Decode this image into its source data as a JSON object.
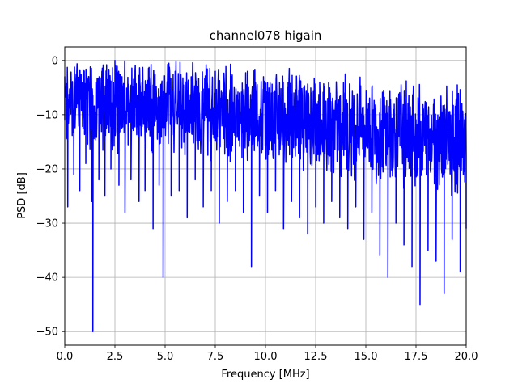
{
  "chart_data": {
    "type": "line",
    "title": "channel078 higain",
    "xlabel": "Frequency [MHz]",
    "ylabel": "PSD [dB]",
    "xlim": [
      0,
      20
    ],
    "ylim": [
      -52.5,
      2.5
    ],
    "x_ticks": [
      0,
      2.5,
      5,
      7.5,
      10,
      12.5,
      15,
      17.5,
      20
    ],
    "x_tick_labels": [
      "0.0",
      "2.5",
      "5.0",
      "7.5",
      "10.0",
      "12.5",
      "15.0",
      "17.5",
      "20.0"
    ],
    "y_ticks": [
      0,
      -10,
      -20,
      -30,
      -40,
      -50
    ],
    "y_tick_labels": [
      "0",
      "−10",
      "−20",
      "−30",
      "−40",
      "−50"
    ],
    "grid": true,
    "series": [
      {
        "color": "#0000ff",
        "x": [
          0,
          0.15,
          0.3,
          0.45,
          0.6,
          0.75,
          0.9,
          1.05,
          1.2,
          1.35,
          1.4,
          1.55,
          1.7,
          1.85,
          2.0,
          2.15,
          2.3,
          2.5,
          2.7,
          2.85,
          3.0,
          3.15,
          3.3,
          3.5,
          3.7,
          3.85,
          4.0,
          4.2,
          4.4,
          4.55,
          4.7,
          4.9,
          5.1,
          5.3,
          5.5,
          5.7,
          5.9,
          6.1,
          6.3,
          6.5,
          6.7,
          6.9,
          7.1,
          7.3,
          7.5,
          7.7,
          7.9,
          8.1,
          8.3,
          8.5,
          8.7,
          8.9,
          9.1,
          9.3,
          9.5,
          9.7,
          9.9,
          10.1,
          10.3,
          10.5,
          10.7,
          10.9,
          11.1,
          11.3,
          11.5,
          11.7,
          11.9,
          12.1,
          12.3,
          12.5,
          12.7,
          12.9,
          13.1,
          13.3,
          13.5,
          13.7,
          13.9,
          14.1,
          14.3,
          14.5,
          14.7,
          14.9,
          15.1,
          15.3,
          15.5,
          15.7,
          15.9,
          16.1,
          16.3,
          16.5,
          16.7,
          16.9,
          17.1,
          17.3,
          17.5,
          17.7,
          17.9,
          18.1,
          18.3,
          18.5,
          18.7,
          18.9,
          19.1,
          19.3,
          19.5,
          19.7,
          19.9,
          20.0
        ],
        "values": [
          -3,
          -27,
          -5,
          -21,
          -2,
          -24,
          -6,
          -19,
          -3,
          -26,
          -50,
          -4,
          -22,
          -2,
          -25,
          -5,
          -20,
          0,
          -23,
          -3,
          -28,
          -6,
          -22,
          -2,
          -26,
          -4,
          -24,
          -3,
          -31,
          -6,
          -23,
          -40,
          -4,
          -25,
          -2,
          -24,
          -5,
          -29,
          -3,
          -22,
          -6,
          -27,
          -4,
          -24,
          -2,
          -30,
          -5,
          -26,
          -3,
          -24,
          -6,
          -28,
          -2,
          -38,
          -4,
          -25,
          -3,
          -28,
          -6,
          -24,
          -4,
          -31,
          -5,
          -26,
          -7,
          -29,
          -5,
          -32,
          -6,
          -27,
          -4,
          -30,
          -7,
          -26,
          -8,
          -29,
          -6,
          -31,
          -9,
          -27,
          -7,
          -33,
          -9,
          -28,
          -10,
          -36,
          -9,
          -40,
          -11,
          -30,
          -9,
          -34,
          -10,
          -38,
          -12,
          -45,
          -11,
          -35,
          -13,
          -37,
          -12,
          -43,
          -13,
          -33,
          -15,
          -39,
          -14,
          -31
        ]
      }
    ]
  }
}
